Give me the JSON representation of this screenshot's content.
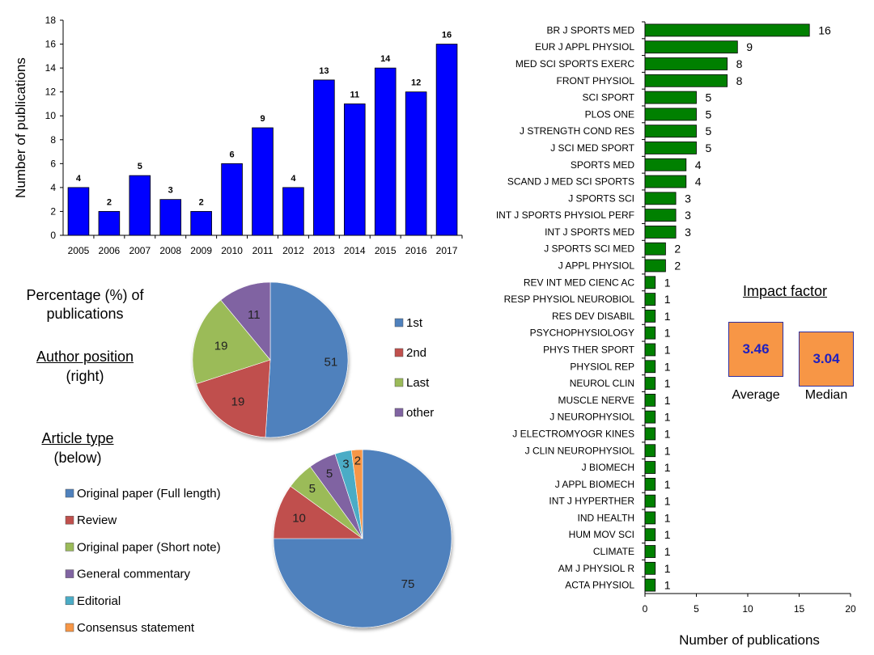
{
  "chart_data": [
    {
      "type": "bar",
      "orientation": "vertical",
      "categories": [
        "2005",
        "2006",
        "2007",
        "2008",
        "2009",
        "2010",
        "2011",
        "2012",
        "2013",
        "2014",
        "2015",
        "2016",
        "2017"
      ],
      "values": [
        4,
        2,
        5,
        3,
        2,
        6,
        9,
        4,
        13,
        11,
        14,
        12,
        16
      ],
      "ylabel": "Number of publications",
      "xlabel": "",
      "ylim": [
        0,
        18
      ],
      "yticks": [
        0,
        2,
        4,
        6,
        8,
        10,
        12,
        14,
        16,
        18
      ],
      "color": "#0000ff",
      "grid": false
    },
    {
      "type": "pie",
      "title_lines": [
        "Percentage (%) of",
        "publications"
      ],
      "subtitle_lines": [
        "Author position",
        "(right)"
      ],
      "slices": [
        {
          "label": "1st",
          "value": 51,
          "color": "#4f81bd"
        },
        {
          "label": "2nd",
          "value": 19,
          "color": "#c0504d"
        },
        {
          "label": "Last",
          "value": 19,
          "color": "#9bbb59"
        },
        {
          "label": "other",
          "value": 11,
          "color": "#8064a2"
        }
      ],
      "legend_placement": "right"
    },
    {
      "type": "pie",
      "subtitle_lines": [
        "Article type",
        "(below)"
      ],
      "slices": [
        {
          "label": "Original paper (Full length)",
          "value": 75,
          "color": "#4f81bd"
        },
        {
          "label": "Review",
          "value": 10,
          "color": "#c0504d"
        },
        {
          "label": "Original paper (Short note)",
          "value": 5,
          "color": "#9bbb59"
        },
        {
          "label": "General commentary",
          "value": 5,
          "color": "#8064a2"
        },
        {
          "label": "Editorial",
          "value": 3,
          "color": "#4bacc6"
        },
        {
          "label": "Consensus statement",
          "value": 2,
          "color": "#f79646"
        }
      ],
      "legend_placement": "left"
    },
    {
      "type": "bar",
      "orientation": "horizontal",
      "categories": [
        "BR J SPORTS MED",
        "EUR J APPL PHYSIOL",
        "MED SCI SPORTS EXERC",
        "FRONT PHYSIOL",
        "SCI SPORT",
        "PLOS ONE",
        "J STRENGTH COND RES",
        "J SCI MED SPORT",
        "SPORTS MED",
        "SCAND J MED SCI SPORTS",
        "J SPORTS SCI",
        "INT J SPORTS PHYSIOL PERF",
        "INT J SPORTS MED",
        "J SPORTS SCI MED",
        "J APPL PHYSIOL",
        "REV INT MED CIENC AC",
        "RESP PHYSIOL NEUROBIOL",
        "RES DEV DISABIL",
        "PSYCHOPHYSIOLOGY",
        "PHYS THER SPORT",
        "PHYSIOL REP",
        "NEUROL CLIN",
        "MUSCLE NERVE",
        "J NEUROPHYSIOL",
        "J ELECTROMYOGR KINES",
        "J CLIN NEUROPHYSIOL",
        "J BIOMECH",
        "J APPL BIOMECH",
        "INT J HYPERTHER",
        "IND HEALTH",
        "HUM MOV SCI",
        "CLIMATE",
        "AM J PHYSIOL R",
        "ACTA PHYSIOL"
      ],
      "values": [
        16,
        9,
        8,
        8,
        5,
        5,
        5,
        5,
        4,
        4,
        3,
        3,
        3,
        2,
        2,
        1,
        1,
        1,
        1,
        1,
        1,
        1,
        1,
        1,
        1,
        1,
        1,
        1,
        1,
        1,
        1,
        1,
        1,
        1
      ],
      "xlabel": "Number of publications",
      "xlim": [
        0,
        20
      ],
      "xticks": [
        0,
        5,
        10,
        15,
        20
      ],
      "color": "#008000",
      "grid": false
    }
  ],
  "impact_factor": {
    "title": "Impact factor",
    "average_value": "3.46",
    "average_label": "Average",
    "median_value": "3.04",
    "median_label": "Median"
  }
}
